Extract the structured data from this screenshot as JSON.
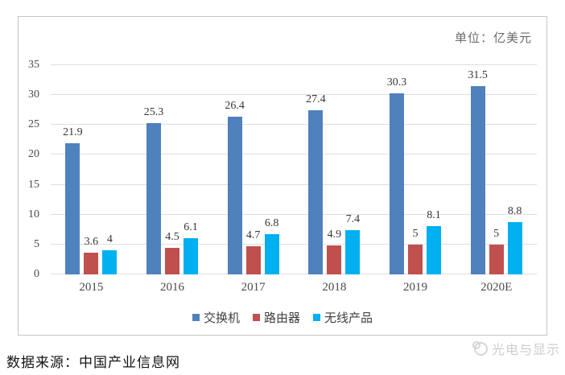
{
  "page": {
    "unit_label": "单位：亿美元",
    "source_text": "数据来源：中国产业信息网",
    "watermark_text": "光电与显示"
  },
  "chart_data": {
    "type": "bar",
    "title": "",
    "unit_label": "单位：亿美元",
    "categories": [
      "2015",
      "2016",
      "2017",
      "2018",
      "2019",
      "2020E"
    ],
    "series": [
      {
        "name": "交换机",
        "color": "#4f81bd",
        "values": [
          21.9,
          25.3,
          26.4,
          27.4,
          30.3,
          31.5
        ]
      },
      {
        "name": "路由器",
        "color": "#c0504d",
        "values": [
          3.6,
          4.5,
          4.7,
          4.9,
          5,
          5
        ]
      },
      {
        "name": "无线产品",
        "color": "#00b0f0",
        "values": [
          4,
          6.1,
          6.8,
          7.4,
          8.1,
          8.8
        ]
      }
    ],
    "ylim": [
      0,
      35
    ],
    "ytick_step": 5,
    "grid": true,
    "legend_position": "bottom"
  }
}
